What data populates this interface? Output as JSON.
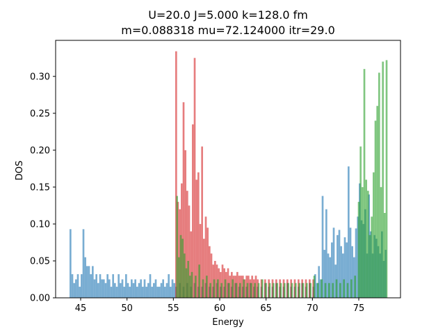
{
  "chart_data": {
    "type": "bar",
    "title_lines": [
      "U=20.0 J=5.000 k=128.0  fm",
      "m=0.088318 mu=72.124000 itr=29.0"
    ],
    "xlabel": "Energy",
    "ylabel": "DOS",
    "xlim": [
      42.3,
      79.5
    ],
    "ylim": [
      0.0,
      0.3488
    ],
    "xticks": [
      45,
      50,
      55,
      60,
      65,
      70,
      75
    ],
    "xtick_labels": [
      "45",
      "50",
      "55",
      "60",
      "65",
      "70",
      "75"
    ],
    "yticks": [
      0.0,
      0.05,
      0.1,
      0.15,
      0.2,
      0.25,
      0.3
    ],
    "ytick_labels": [
      "0.00",
      "0.05",
      "0.10",
      "0.15",
      "0.20",
      "0.25",
      "0.30"
    ],
    "grid": false,
    "legend": "none",
    "series": [
      {
        "color": "#1f77b4",
        "alpha": 0.6,
        "x": [
          43.9,
          44.1,
          44.3,
          44.5,
          44.7,
          44.9,
          45.1,
          45.3,
          45.5,
          45.7,
          45.9,
          46.1,
          46.3,
          46.5,
          46.7,
          46.9,
          47.1,
          47.3,
          47.5,
          47.7,
          47.9,
          48.1,
          48.3,
          48.5,
          48.7,
          48.9,
          49.1,
          49.3,
          49.5,
          49.7,
          49.9,
          50.1,
          50.3,
          50.5,
          50.7,
          50.9,
          51.1,
          51.3,
          51.5,
          51.7,
          51.9,
          52.1,
          52.3,
          52.5,
          52.7,
          52.9,
          53.1,
          53.3,
          53.5,
          53.7,
          53.9,
          54.1,
          54.3,
          54.5,
          54.7,
          54.9,
          55.1,
          55.3,
          55.7,
          56.1,
          56.5,
          56.9,
          57.3,
          57.7,
          58.1,
          58.5,
          58.9,
          59.3,
          59.7,
          60.1,
          60.5,
          60.9,
          61.3,
          61.7,
          62.1,
          62.5,
          62.9,
          63.3,
          63.7,
          64.1,
          64.5,
          64.9,
          65.3,
          65.7,
          66.1,
          66.5,
          66.9,
          67.3,
          67.7,
          68.1,
          68.5,
          68.9,
          69.3,
          69.7,
          70.1,
          70.3,
          70.5,
          70.7,
          70.9,
          71.1,
          71.3,
          71.5,
          71.7,
          71.9,
          72.1,
          72.3,
          72.5,
          72.7,
          72.9,
          73.1,
          73.3,
          73.5,
          73.7,
          73.9,
          74.1,
          74.3,
          74.5,
          74.7,
          74.9,
          75.1,
          75.3,
          75.5,
          75.7,
          75.9,
          76.1,
          76.3,
          76.5,
          76.7,
          76.9,
          77.1,
          77.3,
          77.5,
          77.7,
          77.9
        ],
        "values": [
          0.093,
          0.032,
          0.02,
          0.025,
          0.032,
          0.015,
          0.032,
          0.093,
          0.055,
          0.043,
          0.043,
          0.032,
          0.043,
          0.025,
          0.032,
          0.02,
          0.032,
          0.025,
          0.025,
          0.02,
          0.032,
          0.025,
          0.015,
          0.032,
          0.02,
          0.015,
          0.032,
          0.02,
          0.025,
          0.015,
          0.032,
          0.02,
          0.015,
          0.025,
          0.02,
          0.025,
          0.015,
          0.02,
          0.025,
          0.015,
          0.025,
          0.015,
          0.02,
          0.032,
          0.015,
          0.02,
          0.025,
          0.015,
          0.015,
          0.02,
          0.025,
          0.015,
          0.02,
          0.032,
          0.015,
          0.025,
          0.02,
          0.015,
          0.02,
          0.015,
          0.02,
          0.015,
          0.02,
          0.015,
          0.015,
          0.02,
          0.015,
          0.015,
          0.02,
          0.015,
          0.015,
          0.02,
          0.015,
          0.02,
          0.015,
          0.015,
          0.015,
          0.02,
          0.015,
          0.015,
          0.015,
          0.02,
          0.015,
          0.015,
          0.02,
          0.015,
          0.015,
          0.02,
          0.015,
          0.015,
          0.015,
          0.02,
          0.015,
          0.02,
          0.015,
          0.032,
          0.02,
          0.043,
          0.025,
          0.138,
          0.065,
          0.12,
          0.06,
          0.055,
          0.075,
          0.095,
          0.045,
          0.085,
          0.092,
          0.07,
          0.06,
          0.082,
          0.075,
          0.178,
          0.095,
          0.07,
          0.055,
          0.094,
          0.11,
          0.155,
          0.105,
          0.1,
          0.12,
          0.06,
          0.14,
          0.09,
          0.06,
          0.085,
          0.08,
          0.07,
          0.06,
          0.09,
          0.05,
          0.065
        ]
      },
      {
        "color": "#d62728",
        "alpha": 0.6,
        "x": [
          55.3,
          55.5,
          55.7,
          55.9,
          56.1,
          56.3,
          56.5,
          56.7,
          56.9,
          57.1,
          57.3,
          57.5,
          57.7,
          57.9,
          58.1,
          58.3,
          58.5,
          58.7,
          58.9,
          59.1,
          59.3,
          59.5,
          59.7,
          59.9,
          60.1,
          60.3,
          60.5,
          60.7,
          60.9,
          61.1,
          61.3,
          61.5,
          61.7,
          61.9,
          62.1,
          62.3,
          62.5,
          62.7,
          62.9,
          63.1,
          63.3,
          63.5,
          63.7,
          63.9,
          64.1,
          64.5,
          64.9,
          65.3,
          65.7,
          66.1,
          66.5,
          66.9,
          67.3,
          67.7,
          68.1,
          68.5,
          68.9,
          69.3,
          69.7,
          70.1
        ],
        "values": [
          0.334,
          0.13,
          0.12,
          0.155,
          0.265,
          0.2,
          0.145,
          0.125,
          0.09,
          0.235,
          0.325,
          0.16,
          0.17,
          0.1,
          0.205,
          0.08,
          0.11,
          0.095,
          0.07,
          0.06,
          0.045,
          0.05,
          0.045,
          0.04,
          0.035,
          0.045,
          0.04,
          0.035,
          0.04,
          0.03,
          0.035,
          0.03,
          0.03,
          0.035,
          0.03,
          0.03,
          0.03,
          0.025,
          0.03,
          0.03,
          0.025,
          0.03,
          0.025,
          0.03,
          0.025,
          0.025,
          0.025,
          0.025,
          0.025,
          0.025,
          0.025,
          0.025,
          0.025,
          0.025,
          0.025,
          0.025,
          0.025,
          0.025,
          0.025,
          0.025
        ]
      },
      {
        "color": "#2ca02c",
        "alpha": 0.6,
        "x": [
          55.4,
          55.6,
          55.8,
          56.0,
          56.2,
          56.4,
          56.6,
          56.8,
          57.0,
          57.4,
          57.8,
          58.2,
          58.6,
          59.0,
          59.4,
          59.8,
          60.2,
          60.6,
          61.0,
          61.4,
          61.8,
          62.2,
          62.6,
          63.0,
          63.4,
          63.8,
          64.2,
          64.6,
          65.0,
          65.4,
          65.8,
          66.2,
          66.6,
          67.0,
          67.4,
          67.8,
          68.2,
          68.6,
          69.0,
          69.4,
          69.8,
          70.2,
          70.6,
          71.0,
          71.4,
          71.8,
          72.2,
          72.6,
          73.0,
          73.4,
          73.8,
          74.2,
          74.6,
          75.0,
          75.2,
          75.4,
          75.6,
          75.8,
          76.0,
          76.2,
          76.4,
          76.6,
          76.8,
          77.0,
          77.2,
          77.4,
          77.6,
          77.8,
          78.0
        ],
        "values": [
          0.138,
          0.055,
          0.085,
          0.08,
          0.06,
          0.04,
          0.05,
          0.03,
          0.035,
          0.03,
          0.045,
          0.025,
          0.03,
          0.02,
          0.025,
          0.025,
          0.02,
          0.025,
          0.02,
          0.025,
          0.02,
          0.02,
          0.025,
          0.02,
          0.02,
          0.02,
          0.02,
          0.025,
          0.02,
          0.02,
          0.02,
          0.02,
          0.02,
          0.02,
          0.02,
          0.02,
          0.02,
          0.02,
          0.02,
          0.02,
          0.02,
          0.03,
          0.02,
          0.025,
          0.02,
          0.02,
          0.02,
          0.025,
          0.02,
          0.025,
          0.02,
          0.025,
          0.03,
          0.13,
          0.205,
          0.15,
          0.31,
          0.16,
          0.145,
          0.085,
          0.11,
          0.17,
          0.24,
          0.26,
          0.305,
          0.15,
          0.32,
          0.115,
          0.322
        ]
      }
    ]
  }
}
